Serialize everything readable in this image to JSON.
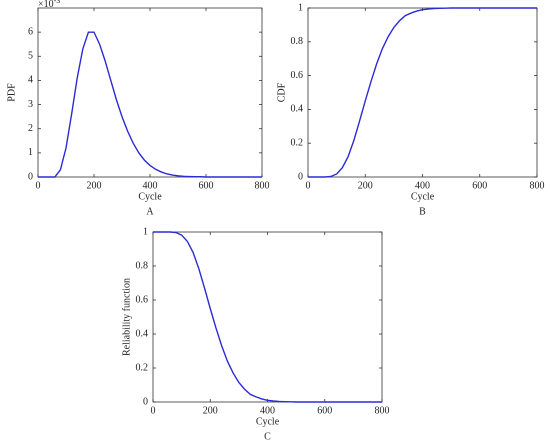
{
  "chart_data": [
    {
      "type": "line",
      "y_label": "PDF",
      "x_label": "Cycle",
      "caption": "A",
      "y_multiplier": {
        "base": "×10",
        "exponent": "-3"
      },
      "x": [
        0,
        20,
        40,
        60,
        80,
        100,
        120,
        140,
        160,
        180,
        200,
        220,
        240,
        260,
        280,
        300,
        320,
        340,
        360,
        380,
        400,
        420,
        440,
        460,
        480,
        500,
        520,
        540,
        560,
        580,
        600,
        620,
        640,
        660,
        680,
        700,
        720,
        740,
        760,
        780,
        800
      ],
      "values": [
        0,
        0,
        0,
        0,
        0.3,
        1.2,
        2.6,
        4.1,
        5.3,
        6.0,
        6.0,
        5.5,
        4.8,
        4.0,
        3.2,
        2.5,
        1.9,
        1.4,
        1.0,
        0.7,
        0.48,
        0.32,
        0.21,
        0.13,
        0.08,
        0.05,
        0.03,
        0.02,
        0.01,
        0.01,
        0,
        0,
        0,
        0,
        0,
        0,
        0,
        0,
        0,
        0,
        0
      ],
      "color": "#2b2bd6",
      "xlim": [
        0,
        800
      ],
      "xticks": [
        0,
        200,
        400,
        600,
        800
      ],
      "ylim": [
        0,
        7
      ],
      "yticks": [
        0,
        1,
        2,
        3,
        4,
        5,
        6
      ]
    },
    {
      "type": "line",
      "y_label": "CDF",
      "x_label": "Cycle",
      "caption": "B",
      "x": [
        0,
        20,
        40,
        60,
        80,
        100,
        120,
        140,
        160,
        180,
        200,
        220,
        240,
        260,
        280,
        300,
        320,
        340,
        360,
        380,
        400,
        420,
        440,
        460,
        480,
        500,
        520,
        540,
        560,
        580,
        600,
        620,
        640,
        660,
        680,
        700,
        720,
        740,
        760,
        780,
        800
      ],
      "values": [
        0,
        0,
        0,
        0,
        0.003,
        0.018,
        0.055,
        0.12,
        0.215,
        0.33,
        0.45,
        0.565,
        0.67,
        0.76,
        0.83,
        0.885,
        0.925,
        0.955,
        0.97,
        0.982,
        0.99,
        0.994,
        0.997,
        0.998,
        0.999,
        1,
        1,
        1,
        1,
        1,
        1,
        1,
        1,
        1,
        1,
        1,
        1,
        1,
        1,
        1,
        1
      ],
      "color": "#2b2bd6",
      "xlim": [
        0,
        800
      ],
      "xticks": [
        0,
        200,
        400,
        600,
        800
      ],
      "ylim": [
        0,
        1
      ],
      "yticks": [
        0,
        0.2,
        0.4,
        0.6,
        0.8,
        1
      ]
    },
    {
      "type": "line",
      "y_label": "Reliability function",
      "x_label": "Cycle",
      "caption": "C",
      "x": [
        0,
        20,
        40,
        60,
        80,
        100,
        120,
        140,
        160,
        180,
        200,
        220,
        240,
        260,
        280,
        300,
        320,
        340,
        360,
        380,
        400,
        420,
        440,
        460,
        480,
        500,
        520,
        540,
        560,
        580,
        600,
        620,
        640,
        660,
        680,
        700,
        720,
        740,
        760,
        780,
        800
      ],
      "values": [
        1,
        1,
        1,
        1,
        0.997,
        0.982,
        0.945,
        0.88,
        0.785,
        0.67,
        0.55,
        0.435,
        0.33,
        0.24,
        0.17,
        0.115,
        0.075,
        0.045,
        0.03,
        0.018,
        0.01,
        0.006,
        0.003,
        0.002,
        0.001,
        0,
        0,
        0,
        0,
        0,
        0,
        0,
        0,
        0,
        0,
        0,
        0,
        0,
        0,
        0,
        0
      ],
      "color": "#2b2bd6",
      "xlim": [
        0,
        800
      ],
      "xticks": [
        0,
        200,
        400,
        600,
        800
      ],
      "ylim": [
        0,
        1
      ],
      "yticks": [
        0,
        0.2,
        0.4,
        0.6,
        0.8,
        1
      ]
    }
  ]
}
